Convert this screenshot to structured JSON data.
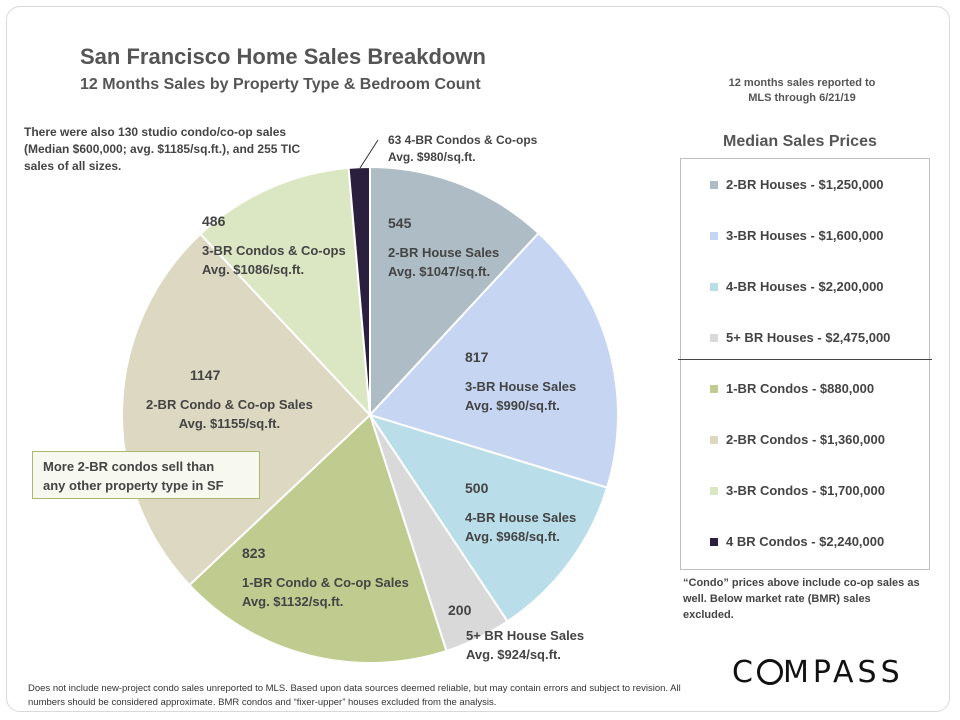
{
  "title": "San Francisco Home Sales Breakdown",
  "subtitle": "12 Months Sales by Property Type & Bedroom Count",
  "reported_note": [
    "12 months sales reported to",
    "MLS through 6/21/19"
  ],
  "studio_note": "There were also 130 studio condo/co-op sales (Median $600,000; avg. $1185/sq.ft.), and 255 TIC sales of all sizes.",
  "condo_4br_note": [
    "63 4-BR Condos & Co-ops",
    "Avg. $980/sq.ft."
  ],
  "callout": [
    "More 2-BR condos sell than",
    "any other property type in SF"
  ],
  "legend_title": "Median Sales Prices",
  "legend": [
    {
      "label": "2-BR Houses - $1,250,000",
      "color": "#aebcc5"
    },
    {
      "label": "3-BR Houses - $1,600,000",
      "color": "#c6d6f2"
    },
    {
      "label": "4-BR Houses - $2,200,000",
      "color": "#b9dde9"
    },
    {
      "label": "5+ BR Houses - $2,475,000",
      "color": "#d9d9d9"
    },
    {
      "label": "1-BR Condos - $880,000",
      "color": "#bfcb8f"
    },
    {
      "label": "2-BR Condos - $1,360,000",
      "color": "#ddd8c2"
    },
    {
      "label": "3-BR Condos - $1,700,000",
      "color": "#dbe6c2"
    },
    {
      "label": "4 BR Condos - $2,240,000",
      "color": "#2a1f3d"
    }
  ],
  "legend_note": "“Condo” prices above include co-op sales as well. Below market rate (BMR) sales excluded.",
  "brand": "COMPASS",
  "footer": "Does not include new-project condo sales unreported to MLS.  Based upon data sources deemed reliable, but may contain errors and subject to revision. All numbers should be considered approximate. BMR condos and “fixer-upper” houses excluded from the analysis.",
  "chart_data": {
    "type": "pie",
    "slices": [
      {
        "value": 545,
        "value_label": "545",
        "label": "2-BR House Sales",
        "avg": "Avg. $1047/sq.ft.",
        "color": "#aebcc5"
      },
      {
        "value": 817,
        "value_label": "817",
        "label": "3-BR House Sales",
        "avg": "Avg. $990/sq.ft.",
        "color": "#c6d6f2"
      },
      {
        "value": 500,
        "value_label": "500",
        "label": "4-BR House Sales",
        "avg": "Avg. $968/sq.ft.",
        "color": "#b9dde9"
      },
      {
        "value": 200,
        "value_label": "200",
        "label": "5+ BR House Sales",
        "avg": "Avg. $924/sq.ft.",
        "color": "#d9d9d9"
      },
      {
        "value": 823,
        "value_label": "823",
        "label": "1-BR Condo & Co-op Sales",
        "avg": "Avg. $1132/sq.ft.",
        "color": "#bfcb8f"
      },
      {
        "value": 1147,
        "value_label": "1147",
        "label": "2-BR Condo & Co-op Sales",
        "avg": "Avg. $1155/sq.ft.",
        "color": "#ddd8c2"
      },
      {
        "value": 486,
        "value_label": "486",
        "label": "3-BR Condos & Co-ops",
        "avg": "Avg. $1086/sq.ft.",
        "color": "#dbe6c2"
      },
      {
        "value": 63,
        "value_label": "",
        "label": "",
        "avg": "",
        "color": "#2a1f3d"
      }
    ]
  }
}
